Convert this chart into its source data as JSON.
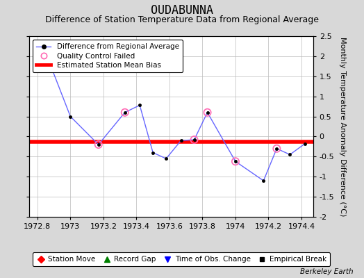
{
  "title": "OUDABUNNA",
  "subtitle": "Difference of Station Temperature Data from Regional Average",
  "ylabel": "Monthly Temperature Anomaly Difference (°C)",
  "xlim": [
    1972.75,
    1974.47
  ],
  "ylim": [
    -2.0,
    2.5
  ],
  "yticks": [
    -2.0,
    -1.5,
    -1.0,
    -0.5,
    0.0,
    0.5,
    1.0,
    1.5,
    2.0,
    2.5
  ],
  "xticks": [
    1972.8,
    1973.0,
    1973.2,
    1973.4,
    1973.6,
    1973.8,
    1974.0,
    1974.2,
    1974.4
  ],
  "xtick_labels": [
    "1972.8",
    "1973",
    "1973.2",
    "1973.4",
    "1973.6",
    "1973.8",
    "1974",
    "1974.2",
    "1974.4"
  ],
  "line_x": [
    1972.83,
    1973.0,
    1973.17,
    1973.33,
    1973.42,
    1973.5,
    1973.58,
    1973.67,
    1973.75,
    1973.83,
    1974.0,
    1974.17,
    1974.25,
    1974.33,
    1974.42
  ],
  "line_y": [
    2.3,
    0.5,
    -0.2,
    0.6,
    0.78,
    -0.4,
    -0.55,
    -0.1,
    -0.08,
    0.6,
    -0.62,
    -1.1,
    -0.3,
    -0.45,
    -0.18
  ],
  "qc_failed_x": [
    1973.17,
    1973.33,
    1973.75,
    1973.83,
    1974.0,
    1974.25
  ],
  "qc_failed_y": [
    -0.2,
    0.6,
    -0.08,
    0.6,
    -0.62,
    -0.3
  ],
  "bias_y": -0.13,
  "line_color": "#6666ff",
  "marker_color": "#000000",
  "bias_color": "#ff0000",
  "qc_color": "#ff69b4",
  "background_color": "#d8d8d8",
  "plot_bg_color": "#ffffff",
  "grid_color": "#bbbbbb",
  "watermark": "Berkeley Earth",
  "title_fontsize": 12,
  "subtitle_fontsize": 9,
  "tick_fontsize": 8,
  "ylabel_fontsize": 8
}
